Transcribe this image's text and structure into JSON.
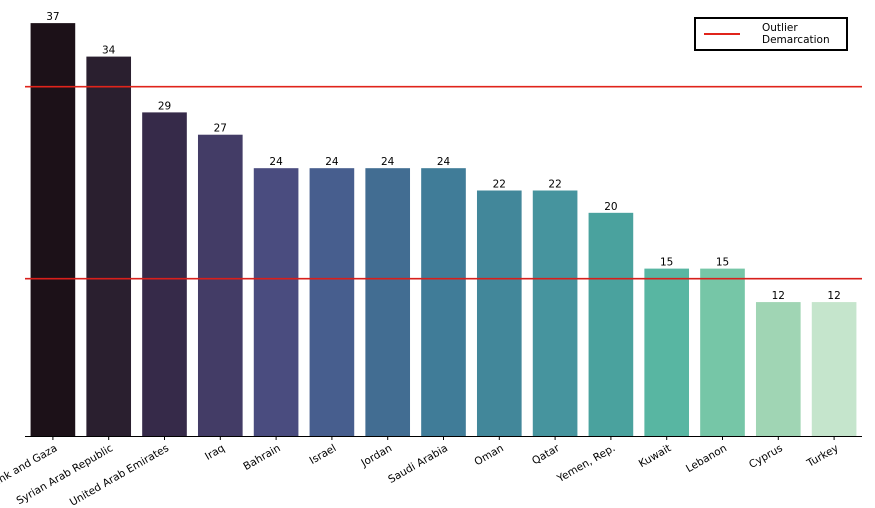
{
  "chart_data": {
    "type": "bar",
    "categories": [
      "West Bank and Gaza",
      "Syrian Arab Republic",
      "United Arab Emirates",
      "Iraq",
      "Bahrain",
      "Israel",
      "Jordan",
      "Saudi Arabia",
      "Oman",
      "Qatar",
      "Yemen, Rep.",
      "Kuwait",
      "Lebanon",
      "Cyprus",
      "Turkey"
    ],
    "values": [
      37,
      34,
      29,
      27,
      24,
      24,
      24,
      24,
      22,
      22,
      20,
      15,
      15,
      12,
      12
    ],
    "bar_colors": [
      "#1c1118",
      "#2a1f2f",
      "#362a49",
      "#433c66",
      "#4a4c7f",
      "#475e8e",
      "#426d92",
      "#407c98",
      "#42879a",
      "#46949e",
      "#4aa29e",
      "#58b6a2",
      "#76c6a7",
      "#a0d5b4",
      "#c5e5cc"
    ],
    "title": "",
    "xlabel": "",
    "ylabel": "",
    "ylim": [
      0,
      37.1
    ],
    "reference_lines": [
      {
        "value": 31.3,
        "color": "#e0241b"
      },
      {
        "value": 14.1,
        "color": "#d81f1b"
      }
    ],
    "legend": {
      "label": "Outlier\nDemarcation",
      "position": "top-right",
      "line_color": "#e0241b"
    },
    "grid": false
  }
}
